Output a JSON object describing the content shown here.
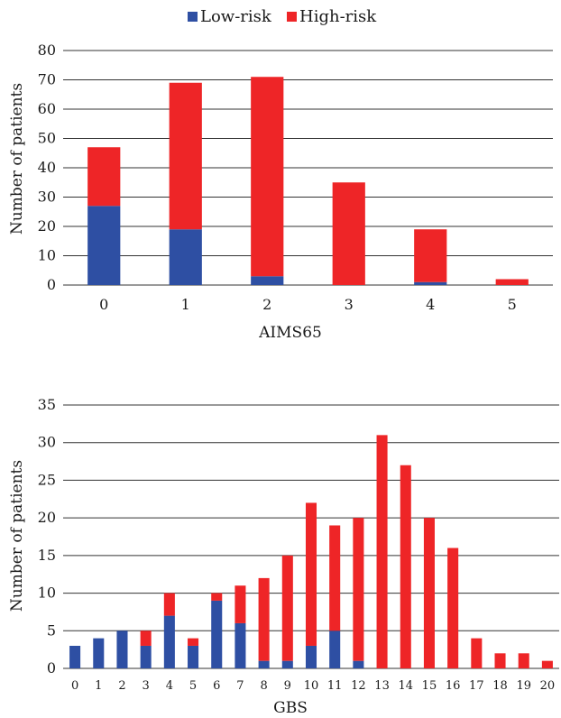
{
  "legend": {
    "low": "Low-risk",
    "high": "High-risk"
  },
  "colors": {
    "low": "#2e4fa3",
    "high": "#ee2527"
  },
  "chart_data": [
    {
      "type": "bar",
      "stacked": true,
      "title": "",
      "xlabel": "AIMS65",
      "ylabel": "Number of patients",
      "ylim": [
        0,
        80
      ],
      "yticks": [
        0,
        10,
        20,
        30,
        40,
        50,
        60,
        70,
        80
      ],
      "grid": true,
      "legend_position": "top",
      "categories": [
        "0",
        "1",
        "2",
        "3",
        "4",
        "5"
      ],
      "series": [
        {
          "name": "Low-risk",
          "values": [
            27,
            19,
            3,
            0,
            1,
            0
          ]
        },
        {
          "name": "High-risk",
          "values": [
            20,
            50,
            68,
            35,
            18,
            2
          ]
        }
      ]
    },
    {
      "type": "bar",
      "stacked": true,
      "title": "",
      "xlabel": "GBS",
      "ylabel": "Number of patients",
      "ylim": [
        0,
        35
      ],
      "yticks": [
        0,
        5,
        10,
        15,
        20,
        25,
        30,
        35
      ],
      "grid": true,
      "categories": [
        "0",
        "1",
        "2",
        "3",
        "4",
        "5",
        "6",
        "7",
        "8",
        "9",
        "10",
        "11",
        "12",
        "13",
        "14",
        "15",
        "16",
        "17",
        "18",
        "19",
        "20"
      ],
      "series": [
        {
          "name": "Low-risk",
          "values": [
            3,
            4,
            5,
            3,
            7,
            3,
            9,
            6,
            1,
            1,
            3,
            5,
            1,
            0,
            0,
            0,
            0,
            0,
            0,
            0,
            0
          ]
        },
        {
          "name": "High-risk",
          "values": [
            0,
            0,
            0,
            2,
            3,
            1,
            1,
            5,
            11,
            14,
            19,
            14,
            19,
            31,
            27,
            20,
            16,
            4,
            2,
            2,
            1
          ]
        }
      ]
    }
  ]
}
